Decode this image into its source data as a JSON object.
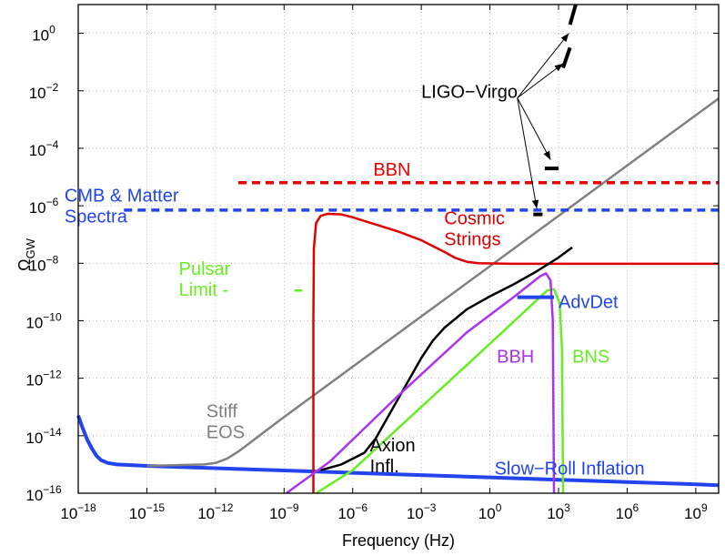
{
  "chart_data": {
    "type": "line",
    "xlabel": "Frequency (Hz)",
    "ylabel": "Ω",
    "ylabel_sub": "GW",
    "x_scale": "log10",
    "y_scale": "log10",
    "xlim_log10": [
      -18,
      10
    ],
    "ylim_log10": [
      -16,
      1
    ],
    "x_ticks": [
      {
        "base": "10",
        "exp": "−18",
        "log10": -18
      },
      {
        "base": "10",
        "exp": "−15",
        "log10": -15
      },
      {
        "base": "10",
        "exp": "−12",
        "log10": -12
      },
      {
        "base": "10",
        "exp": "−9",
        "log10": -9
      },
      {
        "base": "10",
        "exp": "−6",
        "log10": -6
      },
      {
        "base": "10",
        "exp": "−3",
        "log10": -3
      },
      {
        "base": "10",
        "exp": "0",
        "log10": 0
      },
      {
        "base": "10",
        "exp": "3",
        "log10": 3
      },
      {
        "base": "10",
        "exp": "6",
        "log10": 6
      },
      {
        "base": "10",
        "exp": "9",
        "log10": 9
      }
    ],
    "y_ticks": [
      {
        "base": "10",
        "exp": "0",
        "log10": 0
      },
      {
        "base": "10",
        "exp": "−2",
        "log10": -2
      },
      {
        "base": "10",
        "exp": "−4",
        "log10": -4
      },
      {
        "base": "10",
        "exp": "−6",
        "log10": -6
      },
      {
        "base": "10",
        "exp": "−8",
        "log10": -8
      },
      {
        "base": "10",
        "exp": "−10",
        "log10": -10
      },
      {
        "base": "10",
        "exp": "−12",
        "log10": -12
      },
      {
        "base": "10",
        "exp": "−14",
        "log10": -14
      },
      {
        "base": "10",
        "exp": "−16",
        "log10": -16
      }
    ],
    "grid": true,
    "series": [
      {
        "name": "Slow-Roll Inflation",
        "color": "#2244ee",
        "width": 4,
        "dash": "",
        "points": [
          [
            -18,
            -13.3
          ],
          [
            -17.8,
            -13.75
          ],
          [
            -17.6,
            -14.15
          ],
          [
            -17.4,
            -14.45
          ],
          [
            -17.2,
            -14.7
          ],
          [
            -17,
            -14.85
          ],
          [
            -16.7,
            -14.95
          ],
          [
            -16.3,
            -15.0
          ],
          [
            -15,
            -15.05
          ],
          [
            -12,
            -15.13
          ],
          [
            -9,
            -15.21
          ],
          [
            -6,
            -15.29
          ],
          [
            -3,
            -15.37
          ],
          [
            0,
            -15.45
          ],
          [
            3,
            -15.53
          ],
          [
            6,
            -15.61
          ],
          [
            9,
            -15.69
          ],
          [
            10,
            -15.72
          ]
        ]
      },
      {
        "name": "Stiff EOS",
        "color": "#808080",
        "width": 2.5,
        "dash": "",
        "points": [
          [
            -15,
            -15.05
          ],
          [
            -12.5,
            -15.0
          ],
          [
            -12,
            -14.95
          ],
          [
            -11.5,
            -14.8
          ],
          [
            -11,
            -14.55
          ],
          [
            -10.5,
            -14.25
          ],
          [
            -10,
            -13.95
          ],
          [
            -9,
            -13.35
          ],
          [
            -6,
            -11.6
          ],
          [
            -3,
            -9.85
          ],
          [
            0,
            -8.1
          ],
          [
            3,
            -6.35
          ],
          [
            6,
            -4.6
          ],
          [
            9,
            -2.85
          ],
          [
            10,
            -2.27
          ]
        ]
      },
      {
        "name": "Cosmic Strings",
        "color": "#e00000",
        "width": 2.5,
        "dash": "",
        "points": [
          [
            -7.72,
            -16
          ],
          [
            -7.72,
            -10
          ],
          [
            -7.7,
            -7.5
          ],
          [
            -7.6,
            -6.6
          ],
          [
            -7.4,
            -6.35
          ],
          [
            -7.1,
            -6.28
          ],
          [
            -6.5,
            -6.3
          ],
          [
            -6,
            -6.4
          ],
          [
            -5,
            -6.65
          ],
          [
            -4,
            -6.9
          ],
          [
            -3,
            -7.2
          ],
          [
            -2,
            -7.6
          ],
          [
            -1.5,
            -7.82
          ],
          [
            -1,
            -7.95
          ],
          [
            -0.5,
            -8.0
          ],
          [
            1,
            -8.02
          ],
          [
            10,
            -8.02
          ]
        ]
      },
      {
        "name": "Axion Infl.",
        "color": "#000000",
        "width": 2.5,
        "dash": "",
        "points": [
          [
            -7.4,
            -15.2
          ],
          [
            -6.5,
            -15.0
          ],
          [
            -5.5,
            -14.6
          ],
          [
            -5,
            -14.1
          ],
          [
            -4,
            -12.7
          ],
          [
            -3,
            -11.3
          ],
          [
            -2.5,
            -10.7
          ],
          [
            -2,
            -10.25
          ],
          [
            -1,
            -9.6
          ],
          [
            0,
            -9.15
          ],
          [
            1,
            -8.75
          ],
          [
            2,
            -8.3
          ],
          [
            3,
            -7.8
          ],
          [
            3.6,
            -7.45
          ]
        ]
      },
      {
        "name": "BNS",
        "color": "#66ee22",
        "width": 2.5,
        "dash": "",
        "points": [
          [
            -7.6,
            -16
          ],
          [
            -6,
            -15.2
          ],
          [
            -3,
            -13.0
          ],
          [
            0,
            -10.8
          ],
          [
            2.5,
            -8.95
          ],
          [
            2.8,
            -8.9
          ],
          [
            3.05,
            -9.4
          ],
          [
            3.15,
            -11
          ],
          [
            3.2,
            -16
          ]
        ]
      },
      {
        "name": "BBH",
        "color": "#aa33ee",
        "width": 2.5,
        "dash": "",
        "points": [
          [
            -8.9,
            -16
          ],
          [
            -7,
            -14.9
          ],
          [
            -4,
            -12.6
          ],
          [
            -1,
            -10.4
          ],
          [
            1,
            -9.2
          ],
          [
            2.2,
            -8.45
          ],
          [
            2.45,
            -8.35
          ],
          [
            2.65,
            -8.6
          ],
          [
            2.75,
            -10
          ],
          [
            2.8,
            -16
          ]
        ]
      },
      {
        "name": "BBN",
        "color": "#ee0000",
        "width": 3.5,
        "dash": "9 6",
        "points": [
          [
            -11,
            -5.2
          ],
          [
            10,
            -5.2
          ]
        ]
      },
      {
        "name": "CMB & Matter Spectra",
        "color": "#2244ee",
        "width": 3.5,
        "dash": "9 6",
        "points": [
          [
            -16,
            -6.15
          ],
          [
            10,
            -6.15
          ]
        ]
      },
      {
        "name": "AdvDet",
        "color": "#2244ee",
        "width": 4,
        "dash": "",
        "points": [
          [
            1.2,
            -9.18
          ],
          [
            2.8,
            -9.18
          ]
        ]
      },
      {
        "name": "Pulsar Limit",
        "color": "#66ee22",
        "width": 2.5,
        "dash": "",
        "points": [
          [
            -8.55,
            -8.95
          ],
          [
            -8.2,
            -8.95
          ]
        ]
      },
      {
        "name": "LIGO-Virgo limit 1",
        "color": "#000000",
        "width": 4,
        "dash": "",
        "points": [
          [
            1.9,
            -6.3
          ],
          [
            2.3,
            -6.3
          ]
        ]
      },
      {
        "name": "LIGO-Virgo limit 2",
        "color": "#000000",
        "width": 4,
        "dash": "",
        "points": [
          [
            2.4,
            -4.7
          ],
          [
            3.0,
            -4.7
          ]
        ]
      },
      {
        "name": "LIGO-Virgo limit 3",
        "color": "#000000",
        "width": 4,
        "dash": "",
        "points": [
          [
            3.2,
            -1.2
          ],
          [
            3.5,
            -0.5
          ]
        ]
      },
      {
        "name": "LIGO-Virgo limit 4",
        "color": "#000000",
        "width": 4,
        "dash": "",
        "points": [
          [
            3.5,
            0.3
          ],
          [
            3.75,
            1.0
          ]
        ]
      }
    ],
    "arrows": [
      {
        "from": [
          1.2,
          -2.25
        ],
        "to": [
          3.45,
          0.0
        ]
      },
      {
        "from": [
          1.2,
          -2.25
        ],
        "to": [
          3.2,
          -1.05
        ]
      },
      {
        "from": [
          1.2,
          -2.25
        ],
        "to": [
          2.65,
          -4.4
        ]
      },
      {
        "from": [
          1.2,
          -2.25
        ],
        "to": [
          2.05,
          -6.1
        ]
      }
    ],
    "annotations": [
      {
        "name": "ligo-virgo-label",
        "lines": [
          "LIGO−Virgo"
        ],
        "color": "#000000",
        "x": -3.0,
        "y": -2.25
      },
      {
        "name": "bbn-label",
        "lines": [
          "BBN"
        ],
        "color": "#ee0000",
        "x": -5.1,
        "y": -4.95
      },
      {
        "name": "cmb-label",
        "lines": [
          "CMB & Matter",
          "Spectra"
        ],
        "color": "#2244ee",
        "x": -18.6,
        "y": -5.85
      },
      {
        "name": "cosmic-strings-label",
        "lines": [
          "Cosmic",
          "Strings"
        ],
        "color": "#e00000",
        "x": -2.0,
        "y": -6.65
      },
      {
        "name": "pulsar-limit-label",
        "lines": [
          "Pulsar",
          "Limit  -"
        ],
        "color": "#66ee22",
        "x": -13.6,
        "y": -8.4
      },
      {
        "name": "advdet-label",
        "lines": [
          "AdvDet"
        ],
        "color": "#2244ee",
        "x": 3.0,
        "y": -9.55
      },
      {
        "name": "bbh-label",
        "lines": [
          "BBH"
        ],
        "color": "#aa33ee",
        "x": 0.3,
        "y": -11.45
      },
      {
        "name": "bns-label",
        "lines": [
          "BNS"
        ],
        "color": "#66ee22",
        "x": 3.6,
        "y": -11.45
      },
      {
        "name": "stiff-eos-label",
        "lines": [
          "Stiff",
          "EOS"
        ],
        "color": "#808080",
        "x": -12.4,
        "y": -13.35
      },
      {
        "name": "axion-label",
        "lines": [
          "Axion",
          "Infl."
        ],
        "color": "#000000",
        "x": -5.25,
        "y": -14.55
      },
      {
        "name": "slow-roll-label",
        "lines": [
          "Slow−Roll Inflation"
        ],
        "color": "#2244ee",
        "x": 0.2,
        "y": -15.35
      }
    ]
  }
}
